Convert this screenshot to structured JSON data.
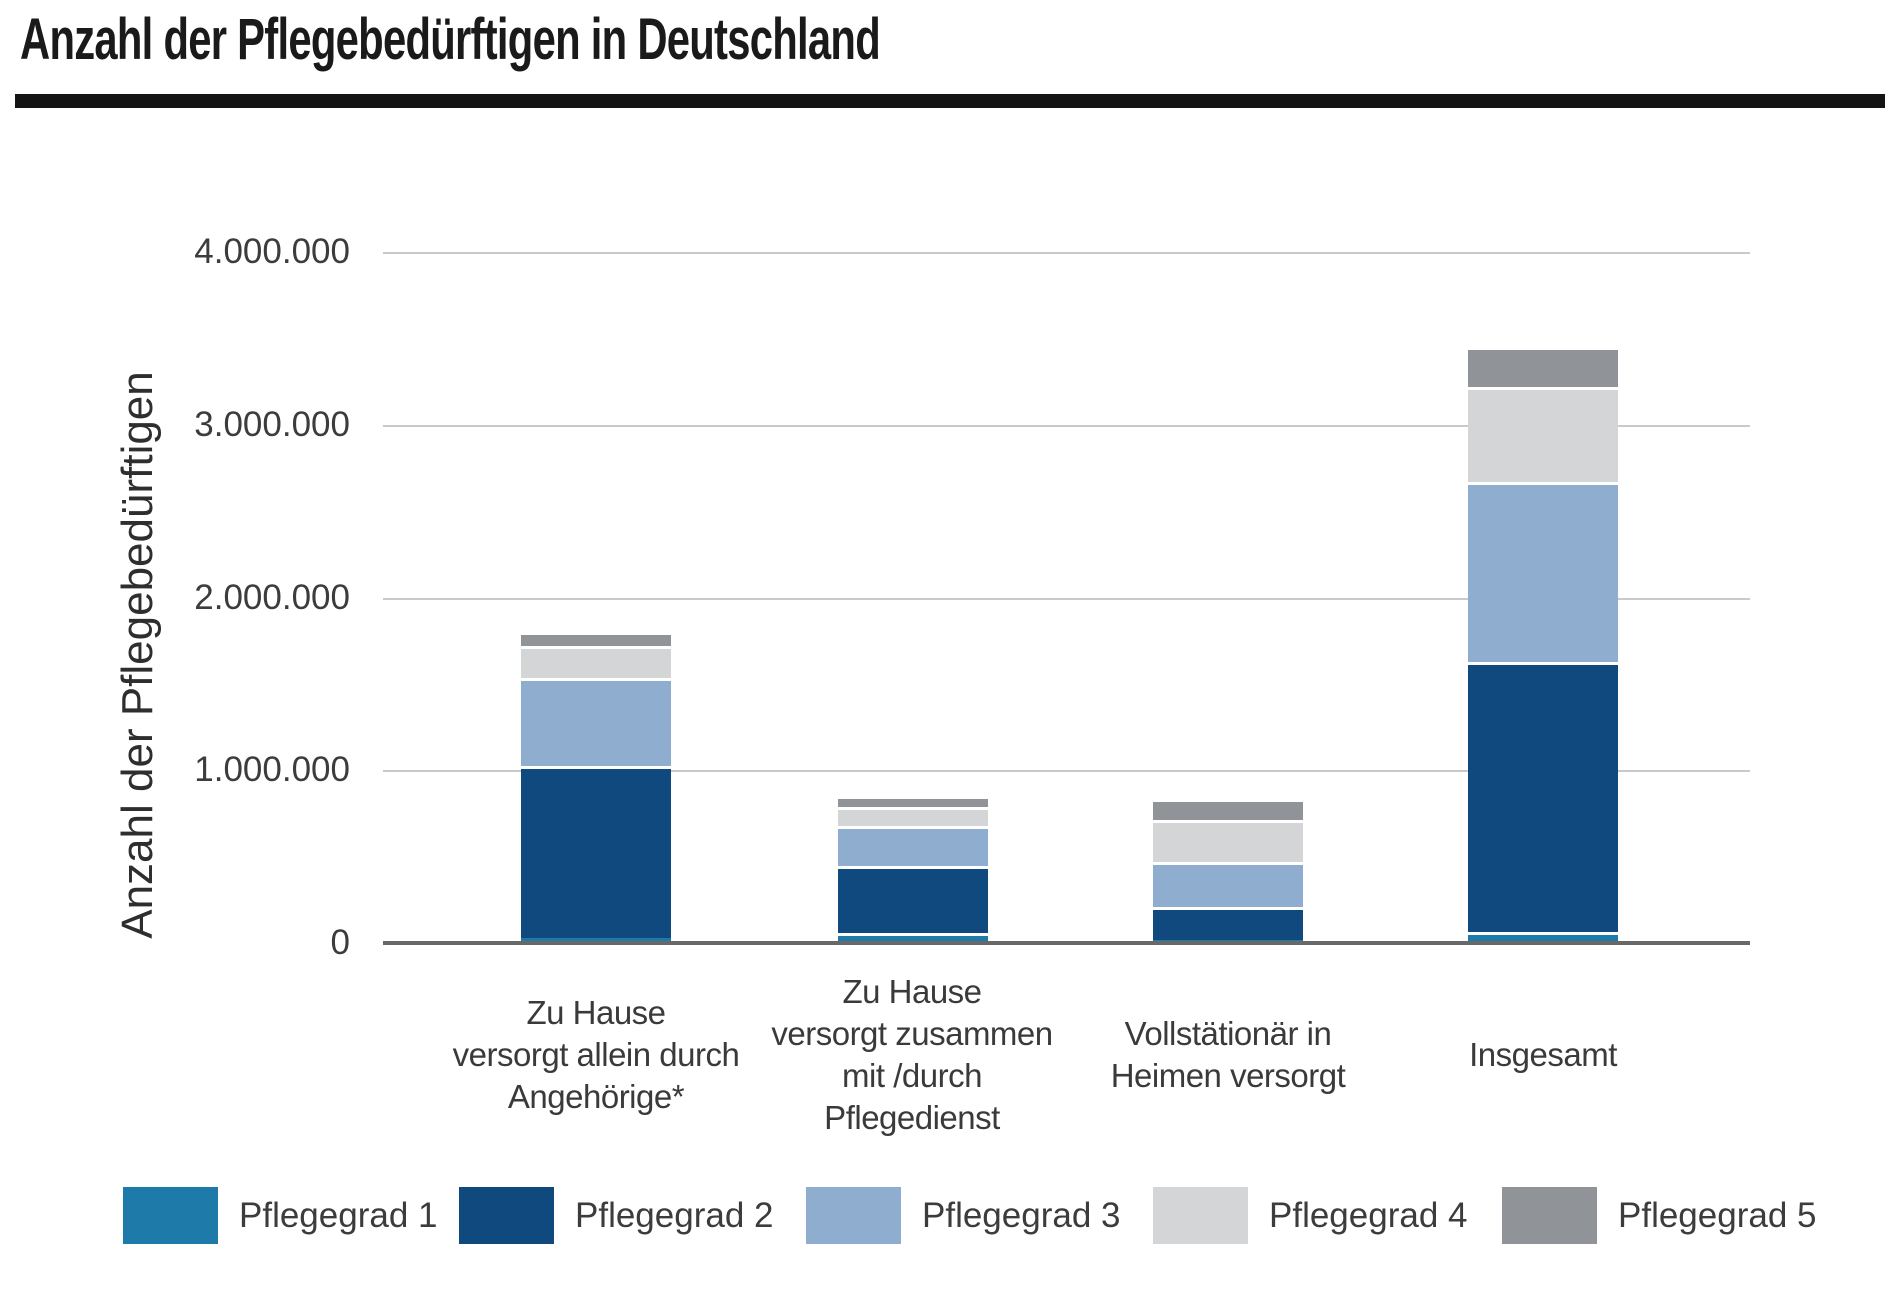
{
  "title": "Anzahl der Pflegebedürftigen in Deutschland",
  "chart_data": {
    "type": "bar",
    "stacked": true,
    "title": "Anzahl der Pflegebedürftigen in Deutschland",
    "xlabel": "",
    "ylabel": "Anzahl der Pflegebedürftigen",
    "ylim": [
      0,
      4000000
    ],
    "ytick_labels": [
      "0",
      "1.000.000",
      "2.000.000",
      "3.000.000",
      "4.000.000"
    ],
    "grid": "horizontal",
    "legend_position": "bottom",
    "categories": [
      "Zu Hause versorgt allein durch Angehörige*",
      "Zu Hause versorgt zusammen mit /durch Pflegedienst",
      "Vollstätionär in Heimen versorgt",
      "Insgesamt"
    ],
    "category_lines": [
      [
        "Zu Hause",
        "versorgt allein durch",
        "Angehörige*"
      ],
      [
        "Zu Hause",
        "versorgt zusammen",
        "mit /durch",
        "Pflegedienst"
      ],
      [
        "Vollstätionär in",
        "Heimen versorgt"
      ],
      [
        "Insgesamt"
      ]
    ],
    "series": [
      {
        "name": "Pflegegrad 1",
        "color": "#1e7aa9",
        "values": [
          15000,
          45000,
          5000,
          55000
        ]
      },
      {
        "name": "Pflegegrad 2",
        "color": "#10497e",
        "values": [
          1000000,
          390000,
          190000,
          1560000
        ]
      },
      {
        "name": "Pflegegrad 3",
        "color": "#8fadce",
        "values": [
          505000,
          230000,
          260000,
          1040000
        ]
      },
      {
        "name": "Pflegegrad 4",
        "color": "#d3d5d7",
        "values": [
          190000,
          110000,
          245000,
          550000
        ]
      },
      {
        "name": "Pflegegrad 5",
        "color": "#909397",
        "values": [
          60000,
          45000,
          105000,
          215000
        ]
      }
    ],
    "totals_estimated": [
      1770000,
      820000,
      805000,
      3420000
    ],
    "separator_color": "#ffffff",
    "gridline_color": "#c9c9c9",
    "axis_line_color": "#686868"
  }
}
